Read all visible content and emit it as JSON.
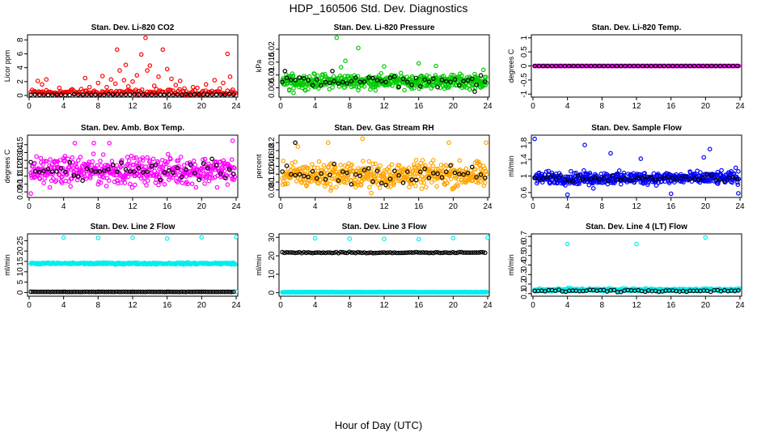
{
  "figure": {
    "title": "HDP_160506  Std. Dev. Diagnostics",
    "x_caption": "Hour of Day (UTC)"
  },
  "chart_data": [
    {
      "type": "scatter",
      "title": "Stan. Dev. Li-820 CO2",
      "ylabel": "Licor ppm",
      "xlim": [
        0,
        24
      ],
      "ylim": [
        0,
        8.5
      ],
      "xticks": [
        0,
        4,
        8,
        12,
        16,
        20,
        24
      ],
      "yticks": [
        0,
        2,
        4,
        6,
        8
      ],
      "series": [
        {
          "color": "#ff0000",
          "baseline": 0.45,
          "noise": 0.35,
          "min": 0.1,
          "max": 1.0,
          "step": 0.15,
          "spikes": [
            [
              1.0,
              2.1
            ],
            [
              1.5,
              1.6
            ],
            [
              2.0,
              2.3
            ],
            [
              3.5,
              1.1
            ],
            [
              5.0,
              0.9
            ],
            [
              6.5,
              2.5
            ],
            [
              7.0,
              1.2
            ],
            [
              8.0,
              1.8
            ],
            [
              8.5,
              2.8
            ],
            [
              9.0,
              1.2
            ],
            [
              9.5,
              2.3
            ],
            [
              10.0,
              1.7
            ],
            [
              10.2,
              6.6
            ],
            [
              10.5,
              3.6
            ],
            [
              11.0,
              2.2
            ],
            [
              11.2,
              4.4
            ],
            [
              11.5,
              1.3
            ],
            [
              12.0,
              2.0
            ],
            [
              12.5,
              2.9
            ],
            [
              13.0,
              5.9
            ],
            [
              13.5,
              8.3
            ],
            [
              13.7,
              3.6
            ],
            [
              14.0,
              4.3
            ],
            [
              14.5,
              1.4
            ],
            [
              15.0,
              2.7
            ],
            [
              15.5,
              6.6
            ],
            [
              16.0,
              3.8
            ],
            [
              16.5,
              2.4
            ],
            [
              17.0,
              1.5
            ],
            [
              17.5,
              2.1
            ],
            [
              18.0,
              1.0
            ],
            [
              19.0,
              1.2
            ],
            [
              19.5,
              1.1
            ],
            [
              20.5,
              1.6
            ],
            [
              21.5,
              2.2
            ],
            [
              22.5,
              1.8
            ],
            [
              23.0,
              6.0
            ],
            [
              23.3,
              2.7
            ]
          ]
        },
        {
          "color": "#000000",
          "baseline": 0.12,
          "noise": 0.05,
          "min": 0.05,
          "max": 0.25,
          "step": 0.5,
          "spikes": []
        }
      ]
    },
    {
      "type": "scatter",
      "title": "Stan. Dev. Li-820 Pressure",
      "ylabel": "kPa",
      "xlim": [
        0,
        24
      ],
      "ylim": [
        0.002,
        0.025
      ],
      "xticks": [
        0,
        4,
        8,
        12,
        16,
        20,
        24
      ],
      "yticks": [
        0.005,
        0.01,
        0.015,
        0.02
      ],
      "series": [
        {
          "color": "#00cc00",
          "baseline": 0.0075,
          "noise": 0.0022,
          "min": 0.004,
          "max": 0.0115,
          "step": 0.05,
          "spikes": [
            [
              1.0,
              0.004
            ],
            [
              1.5,
              0.003
            ],
            [
              2.5,
              0.005
            ],
            [
              6.5,
              0.0245
            ],
            [
              7.0,
              0.013
            ],
            [
              7.5,
              0.0155
            ],
            [
              9.0,
              0.0205
            ],
            [
              11.0,
              0.004
            ],
            [
              12.0,
              0.0133
            ],
            [
              16.0,
              0.0145
            ],
            [
              18.0,
              0.0135
            ],
            [
              23.5,
              0.012
            ]
          ]
        },
        {
          "color": "#000000",
          "baseline": 0.0075,
          "noise": 0.0015,
          "min": 0.005,
          "max": 0.0115,
          "step": 0.5,
          "spikes": [
            [
              0.5,
              0.0115
            ],
            [
              6.0,
              0.0115
            ],
            [
              22.5,
              0.0035
            ]
          ]
        }
      ]
    },
    {
      "type": "scatter",
      "title": "Stan. Dev. Li-820 Temp.",
      "ylabel": "degrees C",
      "xlim": [
        0,
        24
      ],
      "ylim": [
        -1.05,
        1.05
      ],
      "xticks": [
        0,
        4,
        8,
        12,
        16,
        20,
        24
      ],
      "yticks": [
        -1.0,
        -0.5,
        0.0,
        0.5,
        1.0
      ],
      "series": [
        {
          "color": "#ff00ff",
          "baseline": 0,
          "noise": 0,
          "min": 0,
          "max": 0,
          "step": 0.08,
          "spikes": []
        },
        {
          "color": "#000000",
          "baseline": 0,
          "noise": 0,
          "min": 0,
          "max": 0,
          "step": 0.5,
          "spikes": []
        }
      ]
    },
    {
      "type": "scatter",
      "title": "Stan. Dev. Amb. Box Temp.",
      "ylabel": "degrees C",
      "xlim": [
        0,
        24
      ],
      "ylim": [
        0.085,
        0.16
      ],
      "xticks": [
        0,
        4,
        8,
        12,
        16,
        20,
        24
      ],
      "yticks": [
        0.09,
        0.1,
        0.11,
        0.12,
        0.13,
        0.14,
        0.15
      ],
      "series": [
        {
          "color": "#ff00ff",
          "baseline": 0.117,
          "noise": 0.014,
          "min": 0.092,
          "max": 0.15,
          "step": 0.05,
          "spikes": [
            [
              0.2,
              0.088
            ],
            [
              5.3,
              0.152
            ],
            [
              7.5,
              0.152
            ],
            [
              9.3,
              0.152
            ],
            [
              23.6,
              0.155
            ]
          ]
        },
        {
          "color": "#000000",
          "baseline": 0.117,
          "noise": 0.01,
          "min": 0.098,
          "max": 0.14,
          "step": 0.5,
          "spikes": []
        }
      ]
    },
    {
      "type": "scatter",
      "title": "Stan. Dev. Gas Stream RH",
      "ylabel": "percent",
      "xlim": [
        0,
        24
      ],
      "ylim": [
        0.065,
        0.215
      ],
      "xticks": [
        0,
        4,
        8,
        12,
        16,
        20,
        24
      ],
      "yticks": [
        0.08,
        0.1,
        0.12,
        0.14,
        0.16,
        0.18,
        0.2
      ],
      "series": [
        {
          "color": "#ffa500",
          "baseline": 0.118,
          "noise": 0.026,
          "min": 0.075,
          "max": 0.205,
          "step": 0.05,
          "spikes": [
            [
              2.0,
              0.19
            ],
            [
              5.5,
              0.2
            ],
            [
              9.5,
              0.21
            ],
            [
              10.5,
              0.072
            ],
            [
              19.5,
              0.2
            ],
            [
              23.8,
              0.2
            ]
          ]
        },
        {
          "color": "#000000",
          "baseline": 0.12,
          "noise": 0.02,
          "min": 0.09,
          "max": 0.2,
          "step": 0.5,
          "spikes": [
            [
              1.7,
              0.2
            ]
          ]
        }
      ]
    },
    {
      "type": "scatter",
      "title": "Stan. Dev. Sample Flow",
      "ylabel": "ml/min",
      "xlim": [
        0,
        24
      ],
      "ylim": [
        0.52,
        1.95
      ],
      "xticks": [
        0,
        4,
        8,
        12,
        16,
        20,
        24
      ],
      "yticks": [
        0.6,
        1.0,
        1.4,
        1.8
      ],
      "series": [
        {
          "color": "#0000ff",
          "baseline": 0.95,
          "noise": 0.12,
          "min": 0.72,
          "max": 1.3,
          "step": 0.05,
          "spikes": [
            [
              0.2,
              1.9
            ],
            [
              4.0,
              0.55
            ],
            [
              6.0,
              1.75
            ],
            [
              6.5,
              0.78
            ],
            [
              7.0,
              0.7
            ],
            [
              7.4,
              1.0
            ],
            [
              9.0,
              1.55
            ],
            [
              10.2,
              0.8
            ],
            [
              12.5,
              1.42
            ],
            [
              16.0,
              0.57
            ],
            [
              19.8,
              1.45
            ],
            [
              20.5,
              1.65
            ],
            [
              23.5,
              1.2
            ],
            [
              23.8,
              0.58
            ]
          ]
        },
        {
          "color": "#000000",
          "baseline": 0.95,
          "noise": 0.06,
          "min": 0.82,
          "max": 1.1,
          "step": 0.5,
          "spikes": []
        }
      ]
    },
    {
      "type": "scatter",
      "title": "Stan. Dev. Line 2 Flow",
      "ylabel": "ml/min",
      "xlim": [
        0,
        24
      ],
      "ylim": [
        -1,
        27.5
      ],
      "xticks": [
        0,
        4,
        8,
        12,
        16,
        20,
        24
      ],
      "yticks": [
        0,
        5,
        10,
        15,
        20,
        25
      ],
      "series": [
        {
          "color": "#00eeee",
          "baseline": 14.0,
          "noise": 0.35,
          "min": 13.2,
          "max": 15.2,
          "step": 0.08,
          "spikes": [
            [
              4.0,
              26.5
            ],
            [
              8.0,
              26.3
            ],
            [
              12.0,
              26.4
            ],
            [
              16.0,
              26.0
            ],
            [
              20.0,
              26.6
            ],
            [
              24.0,
              26.8
            ],
            [
              0.2,
              0.5
            ],
            [
              4.0,
              0.5
            ],
            [
              8.0,
              0.5
            ],
            [
              12.0,
              0.5
            ],
            [
              16.0,
              0.5
            ],
            [
              20.0,
              0.5
            ],
            [
              24.0,
              0.5
            ]
          ]
        },
        {
          "color": "#000000",
          "baseline": 0.3,
          "noise": 0.05,
          "min": 0.1,
          "max": 0.5,
          "step": 0.25,
          "spikes": []
        }
      ]
    },
    {
      "type": "scatter",
      "title": "Stan. Dev. Line 3 Flow",
      "ylabel": "ml/min",
      "xlim": [
        0,
        24
      ],
      "ylim": [
        -1,
        31
      ],
      "xticks": [
        0,
        4,
        8,
        12,
        16,
        20,
        24
      ],
      "yticks": [
        0,
        10,
        20,
        30
      ],
      "series": [
        {
          "color": "#00eeee",
          "baseline": 0.3,
          "noise": 0.1,
          "min": 0.1,
          "max": 0.6,
          "step": 0.06,
          "spikes": [
            [
              0.2,
              22.0
            ],
            [
              4.0,
              29.5
            ],
            [
              8.0,
              29.3
            ],
            [
              12.0,
              29.2
            ],
            [
              16.0,
              29.0
            ],
            [
              20.0,
              29.6
            ],
            [
              24.0,
              29.8
            ]
          ]
        },
        {
          "color": "#000000",
          "baseline": 21.7,
          "noise": 0.25,
          "min": 21.2,
          "max": 22.3,
          "step": 0.25,
          "spikes": []
        }
      ]
    },
    {
      "type": "scatter",
      "title": "Stan. Dev. Line 4 (LT) Flow",
      "ylabel": "ml/min",
      "xlim": [
        0,
        24
      ],
      "ylim": [
        0.09,
        0.71
      ],
      "xticks": [
        0,
        4,
        8,
        12,
        16,
        20,
        24
      ],
      "yticks": [
        0.1,
        0.2,
        0.3,
        0.4,
        0.5,
        0.6,
        0.7
      ],
      "series": [
        {
          "color": "#00eeee",
          "baseline": 0.14,
          "noise": 0.012,
          "min": 0.11,
          "max": 0.17,
          "step": 0.06,
          "spikes": [
            [
              4.0,
              0.62
            ],
            [
              12.0,
              0.62
            ],
            [
              20.0,
              0.69
            ]
          ]
        },
        {
          "color": "#000000",
          "baseline": 0.13,
          "noise": 0.01,
          "min": 0.11,
          "max": 0.16,
          "step": 0.4,
          "spikes": []
        }
      ]
    }
  ]
}
